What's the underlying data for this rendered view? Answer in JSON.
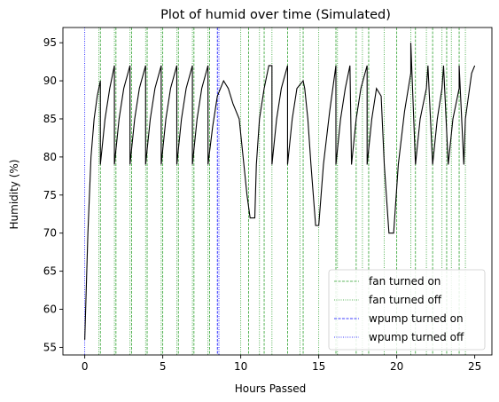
{
  "chart_data": {
    "type": "line",
    "title": "Plot of humid over time (Simulated)",
    "xlabel": "Hours Passed",
    "ylabel": "Humidity (%)",
    "xlim": [
      -1.4,
      26.1
    ],
    "ylim": [
      54,
      97
    ],
    "xticks": [
      0,
      5,
      10,
      15,
      20,
      25
    ],
    "yticks": [
      55,
      60,
      65,
      70,
      75,
      80,
      85,
      90,
      95
    ],
    "grid": false,
    "legend_position": "lower right",
    "colors": {
      "line": "#000000",
      "fan_on": "#2ca02c",
      "fan_off": "#2ca02c",
      "wpump_on": "#0000ff",
      "wpump_off": "#0000ff"
    },
    "series": [
      {
        "name": "humid",
        "x": [
          0,
          0.2,
          0.4,
          0.6,
          0.8,
          1.0,
          1.0,
          1.3,
          1.6,
          1.9,
          1.9,
          2.2,
          2.5,
          2.9,
          2.9,
          3.2,
          3.5,
          3.9,
          3.9,
          4.2,
          4.5,
          4.9,
          4.9,
          5.2,
          5.5,
          5.9,
          5.9,
          6.2,
          6.5,
          6.9,
          6.9,
          7.2,
          7.5,
          7.9,
          7.9,
          8.2,
          8.5,
          8.9,
          8.9,
          9.2,
          9.5,
          9.9,
          10.0,
          10.2,
          10.4,
          10.6,
          10.9,
          11.0,
          11.2,
          11.5,
          11.8,
          12.0,
          12.0,
          12.3,
          12.6,
          13.0,
          13.0,
          13.3,
          13.6,
          14.0,
          14.1,
          14.3,
          14.5,
          14.8,
          15.0,
          15.3,
          15.7,
          16.1,
          16.1,
          16.4,
          16.7,
          17.0,
          17.1,
          17.4,
          17.7,
          18.1,
          18.1,
          18.4,
          18.7,
          19.0,
          19.2,
          19.5,
          19.8,
          20.1,
          20.5,
          20.9,
          20.9,
          21.2,
          21.5,
          21.9,
          22.0,
          22.3,
          22.6,
          22.9,
          23.0,
          23.3,
          23.6,
          24.0,
          24.0,
          24.3,
          24.4,
          24.6,
          24.8,
          25.0
        ],
        "y": [
          56,
          70,
          80,
          85,
          88,
          90,
          79,
          85,
          89,
          92,
          79,
          85,
          89,
          92,
          79,
          85,
          89,
          92,
          79,
          85,
          89,
          92,
          79,
          85,
          89,
          92,
          79,
          85,
          89,
          92,
          79,
          85,
          89,
          92,
          79,
          84,
          88,
          90,
          90,
          89,
          87,
          85,
          83,
          79,
          75,
          72,
          72,
          79,
          85,
          89,
          92,
          92,
          79,
          85,
          89,
          92,
          79,
          85,
          89,
          90,
          89,
          85,
          79,
          71,
          71,
          79,
          86,
          92,
          79,
          85,
          89,
          92,
          79,
          85,
          89,
          92,
          79,
          85,
          89,
          88,
          79,
          70,
          70,
          79,
          86,
          91,
          95,
          79,
          85,
          89,
          92,
          79,
          85,
          89,
          92,
          79,
          85,
          89,
          92,
          79,
          85,
          88,
          91,
          92
        ]
      }
    ],
    "event_lines": {
      "fan_on": [
        1.0,
        2.0,
        3.0,
        4.0,
        5.0,
        6.0,
        7.0,
        8.0,
        10.5,
        11.5,
        13.0,
        14.0,
        16.1,
        17.4,
        18.2,
        20.0,
        21.2,
        22.3,
        23.2,
        24.0
      ],
      "fan_off": [
        0.9,
        1.9,
        2.9,
        3.9,
        4.9,
        5.9,
        6.9,
        7.9,
        10.0,
        11.2,
        12.0,
        13.8,
        15.0,
        16.2,
        17.8,
        19.2,
        20.9,
        21.9,
        22.9,
        23.5,
        24.4
      ],
      "wpump_on": [
        8.5
      ],
      "wpump_off": [
        0.0,
        8.6
      ]
    },
    "legend": [
      {
        "key": "fan_on",
        "label": "fan turned on"
      },
      {
        "key": "fan_off",
        "label": "fan turned off"
      },
      {
        "key": "wpump_on",
        "label": "wpump turned on"
      },
      {
        "key": "wpump_off",
        "label": "wpump turned off"
      }
    ]
  }
}
